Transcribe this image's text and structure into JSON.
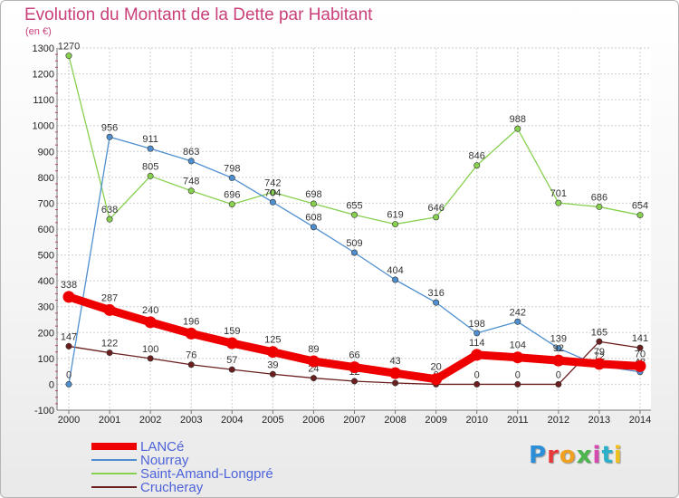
{
  "chart_data": {
    "type": "line",
    "title": "Evolution du Montant de la Dette par Habitant",
    "subtitle": "(en €)",
    "x": [
      "2000",
      "2001",
      "2002",
      "2003",
      "2004",
      "2005",
      "2006",
      "2007",
      "2008",
      "2009",
      "2010",
      "2011",
      "2012",
      "2013",
      "2014"
    ],
    "ylim": [
      -100,
      1300
    ],
    "yticks": [
      -100,
      0,
      100,
      200,
      300,
      400,
      500,
      600,
      700,
      800,
      900,
      1000,
      1100,
      1200,
      1300
    ],
    "grid": true,
    "legend_position": "bottom-left",
    "series": [
      {
        "name": "LANCé",
        "color": "#ee0000",
        "emphasis": true,
        "values": [
          338,
          287,
          240,
          196,
          159,
          125,
          89,
          66,
          43,
          20,
          114,
          104,
          92,
          79,
          70
        ],
        "labels": [
          "338",
          "287",
          "240",
          "196",
          "159",
          "125",
          "89",
          "66",
          "43",
          "20",
          "114",
          "104",
          "92",
          "79",
          "70"
        ]
      },
      {
        "name": "Nourray",
        "color": "#4f8fd0",
        "values": [
          0,
          956,
          911,
          863,
          798,
          704,
          608,
          509,
          404,
          316,
          198,
          242,
          139,
          72,
          48
        ],
        "labels": [
          "0",
          "956",
          "911",
          "863",
          "798",
          "704",
          "608",
          "509",
          "404",
          "316",
          "198",
          "242",
          "139",
          "72",
          "48"
        ]
      },
      {
        "name": "Saint-Amand-Longpré",
        "color": "#88d050",
        "values": [
          1270,
          638,
          805,
          748,
          696,
          742,
          698,
          655,
          619,
          646,
          846,
          988,
          701,
          686,
          654
        ],
        "labels": [
          "1270",
          "638",
          "805",
          "748",
          "696",
          "742",
          "698",
          "655",
          "619",
          "646",
          "846",
          "988",
          "701",
          "686",
          "654"
        ]
      },
      {
        "name": "Crucheray",
        "color": "#6b1e1e",
        "values": [
          147,
          122,
          100,
          76,
          57,
          39,
          24,
          12,
          5,
          0,
          0,
          0,
          0,
          165,
          141
        ],
        "labels": [
          "147",
          "122",
          "100",
          "76",
          "57",
          "39",
          "24",
          "12",
          "5",
          "0",
          "0",
          "0",
          "0",
          "165",
          "141"
        ]
      }
    ]
  },
  "logo": {
    "text": "Proxiti",
    "colors": [
      "#2a8ed8",
      "#e83a3a",
      "#f0a020",
      "#4ab54a",
      "#d44ab0",
      "#2ab0c8",
      "#f0c020"
    ]
  }
}
